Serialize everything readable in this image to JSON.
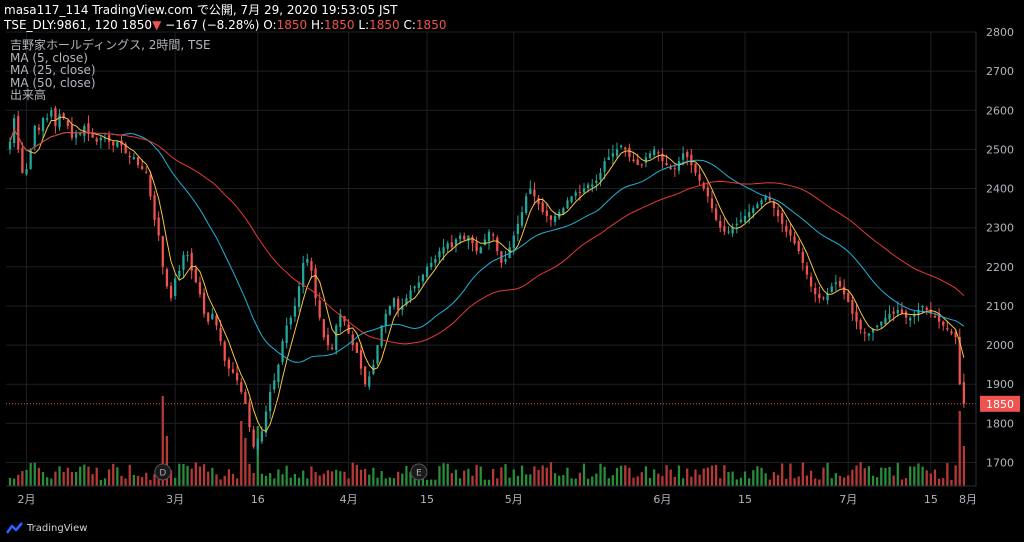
{
  "header": {
    "line1_prefix": "masa117_114 TradingView.com で公開, 7月 29, 2020 19:53:05 JST",
    "line2_symbol": "TSE_DLY:9861, 120 1850",
    "line2_change_arrow": "▼",
    "line2_change": "−167 (−8.28%)",
    "ohlc": [
      {
        "label": "O:",
        "value": "1850"
      },
      {
        "label": "H:",
        "value": "1850"
      },
      {
        "label": "L:",
        "value": "1850"
      },
      {
        "label": "C:",
        "value": "1850"
      }
    ]
  },
  "legend": {
    "title": "吉野家ホールディングス, 2時間, TSE",
    "ma5": "MA (5, close)",
    "ma25": "MA (25, close)",
    "ma50": "MA (50, close)",
    "volume": "出来高"
  },
  "brand": {
    "label": "TradingView"
  },
  "colors": {
    "up": "#26a69a",
    "down": "#ef5350",
    "ma5": "#f5c542",
    "ma25": "#1fb2d6",
    "ma50": "#e53935",
    "vol_up": "#2a8d3a",
    "vol_down": "#b53a36",
    "price_tag": "#ef5350"
  },
  "chart_data": {
    "type": "candlestick",
    "ylim": [
      1640,
      2800
    ],
    "yticks": [
      "2800",
      "2700",
      "2600",
      "2500",
      "2400",
      "2300",
      "2200",
      "2100",
      "2000",
      "1900",
      "1850",
      "1800",
      "1700"
    ],
    "last_price": "1850",
    "xticks": [
      {
        "label": "2月",
        "idx": 4
      },
      {
        "label": "3月",
        "idx": 40
      },
      {
        "label": "16",
        "idx": 60
      },
      {
        "label": "4月",
        "idx": 82
      },
      {
        "label": "15",
        "idx": 101
      },
      {
        "label": "5月",
        "idx": 122
      },
      {
        "label": "6月",
        "idx": 158
      },
      {
        "label": "15",
        "idx": 178
      },
      {
        "label": "7月",
        "idx": 203
      },
      {
        "label": "15",
        "idx": 223
      },
      {
        "label": "8月",
        "idx": 243
      }
    ],
    "events": [
      {
        "label": "D",
        "idx": 37
      },
      {
        "label": "E",
        "idx": 99
      },
      {
        "label": "E",
        "idx": 236
      }
    ],
    "close_series": [
      2520,
      2580,
      2500,
      2440,
      2450,
      2500,
      2560,
      2550,
      2580,
      2580,
      2600,
      2560,
      2590,
      2580,
      2560,
      2530,
      2540,
      2540,
      2560,
      2540,
      2530,
      2520,
      2530,
      2530,
      2520,
      2510,
      2520,
      2510,
      2490,
      2480,
      2480,
      2460,
      2450,
      2440,
      2380,
      2320,
      2280,
      2200,
      2150,
      2120,
      2170,
      2190,
      2230,
      2230,
      2190,
      2160,
      2130,
      2080,
      2060,
      2080,
      2050,
      2010,
      1960,
      1940,
      1930,
      1910,
      1880,
      1850,
      1790,
      1740,
      1760,
      1780,
      1830,
      1880,
      1910,
      1950,
      2010,
      2050,
      2070,
      2100,
      2150,
      2210,
      2220,
      2190,
      2120,
      2070,
      2020,
      2000,
      1990,
      2050,
      2080,
      2060,
      2030,
      2000,
      1980,
      1940,
      1900,
      1920,
      1950,
      2000,
      2050,
      2080,
      2100,
      2120,
      2090,
      2100,
      2120,
      2140,
      2150,
      2160,
      2180,
      2200,
      2210,
      2220,
      2240,
      2250,
      2260,
      2250,
      2270,
      2280,
      2270,
      2280,
      2260,
      2240,
      2250,
      2270,
      2290,
      2280,
      2240,
      2210,
      2220,
      2250,
      2280,
      2310,
      2340,
      2380,
      2400,
      2380,
      2360,
      2340,
      2330,
      2320,
      2330,
      2340,
      2350,
      2370,
      2380,
      2390,
      2390,
      2400,
      2410,
      2410,
      2420,
      2440,
      2470,
      2480,
      2490,
      2500,
      2510,
      2500,
      2480,
      2470,
      2460,
      2460,
      2480,
      2490,
      2500,
      2490,
      2470,
      2460,
      2450,
      2450,
      2470,
      2490,
      2480,
      2460,
      2440,
      2420,
      2400,
      2380,
      2350,
      2320,
      2300,
      2290,
      2290,
      2300,
      2310,
      2320,
      2330,
      2340,
      2350,
      2360,
      2370,
      2380,
      2370,
      2350,
      2330,
      2310,
      2290,
      2280,
      2260,
      2240,
      2210,
      2180,
      2150,
      2130,
      2120,
      2120,
      2130,
      2150,
      2160,
      2150,
      2130,
      2110,
      2080,
      2060,
      2040,
      2030,
      2030,
      2040,
      2050,
      2060,
      2070,
      2080,
      2080,
      2090,
      2080,
      2070,
      2070,
      2080,
      2090,
      2100,
      2090,
      2080,
      2070,
      2060,
      2050,
      2040,
      2030,
      2020,
      1900,
      1850
    ]
  }
}
